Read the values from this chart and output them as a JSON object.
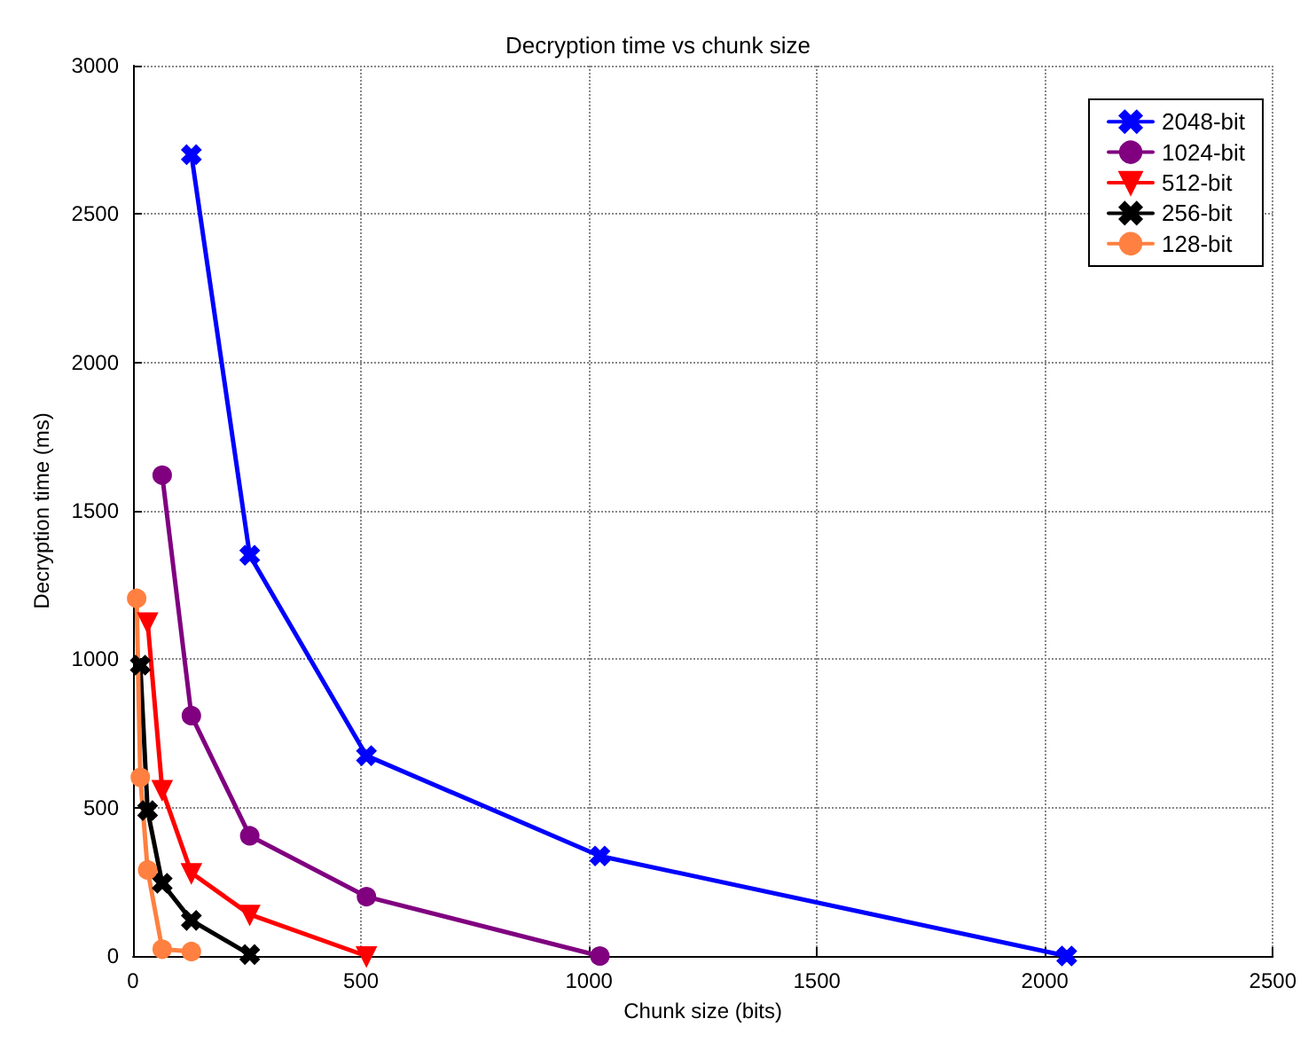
{
  "chart_data": {
    "type": "line",
    "title": "Decryption time vs chunk size",
    "xlabel": "Chunk size (bits)",
    "ylabel": "Decryption time (ms)",
    "xlim": [
      0,
      2500
    ],
    "xticks": [
      0,
      500,
      1000,
      1500,
      2000,
      2500
    ],
    "ylim": [
      0,
      3000
    ],
    "yticks": [
      0,
      500,
      1000,
      1500,
      2000,
      2500,
      3000
    ],
    "grid": true,
    "legend": "top right",
    "line_style": "solid",
    "series": [
      {
        "name": "2048-bit",
        "color": "#0000ff",
        "marker": "cross",
        "x": [
          128,
          256,
          512,
          1024,
          2048
        ],
        "values": [
          2700,
          1350,
          675,
          337,
          0
        ]
      },
      {
        "name": "1024-bit",
        "color": "#800080",
        "marker": "circle",
        "x": [
          64,
          128,
          256,
          512,
          1024
        ],
        "values": [
          1620,
          810,
          405,
          200,
          0
        ]
      },
      {
        "name": "512-bit",
        "color": "#ff0000",
        "marker": "triangle",
        "x": [
          32,
          64,
          128,
          256,
          512
        ],
        "values": [
          1125,
          560,
          280,
          140,
          0
        ]
      },
      {
        "name": "256-bit",
        "color": "#000000",
        "marker": "cross",
        "x": [
          16,
          32,
          64,
          128,
          256
        ],
        "values": [
          980,
          490,
          245,
          120,
          5
        ]
      },
      {
        "name": "128-bit",
        "color": "#ff8040",
        "marker": "circle",
        "x": [
          8,
          16,
          32,
          64,
          128
        ],
        "values": [
          1205,
          602,
          290,
          23,
          15
        ]
      }
    ]
  }
}
